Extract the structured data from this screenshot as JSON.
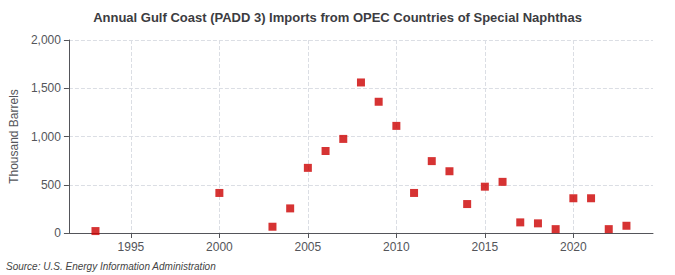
{
  "chart_data": {
    "type": "scatter",
    "title": "Annual Gulf Coast (PADD 3) Imports from OPEC Countries of Special Naphthas",
    "ylabel": "Thousand Barrels",
    "annotations": [
      "Source: U.S. Energy Information Administration"
    ],
    "x": [
      1993,
      2000,
      2003,
      2004,
      2005,
      2006,
      2007,
      2008,
      2009,
      2010,
      2011,
      2012,
      2013,
      2014,
      2015,
      2016,
      2017,
      2018,
      2019,
      2020,
      2021,
      2022,
      2023
    ],
    "values": [
      20,
      415,
      65,
      255,
      675,
      850,
      975,
      1560,
      1360,
      1110,
      415,
      745,
      640,
      300,
      480,
      530,
      110,
      100,
      40,
      360,
      360,
      40,
      75
    ],
    "color": "#cc0000",
    "marker": "square",
    "xlim": [
      1991.5,
      2024.5
    ],
    "xticks": [
      1995,
      2000,
      2005,
      2010,
      2015,
      2020
    ],
    "ylim": [
      0,
      2000
    ],
    "yticks": [
      0,
      500,
      {
        "value": 1000,
        "label": "1,000"
      },
      {
        "value": 1500,
        "label": "1,500"
      },
      {
        "value": 2000,
        "label": "2,000"
      }
    ],
    "grid": true
  }
}
